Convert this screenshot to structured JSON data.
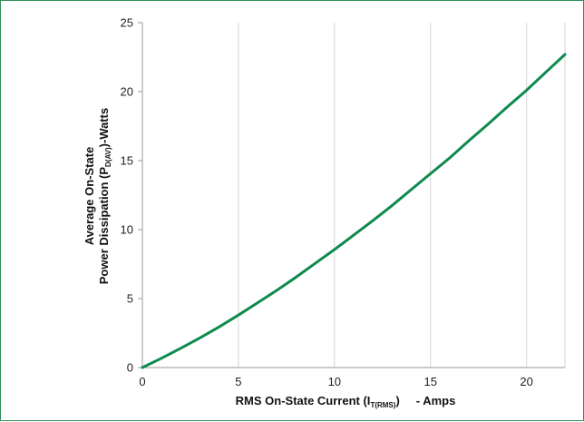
{
  "chart_data": {
    "type": "line",
    "title": "",
    "xlabel": {
      "main": "RMS On-State Current (I",
      "sub": "T(RMS)",
      "suffix": ")",
      "tail": "- Amps"
    },
    "ylabel": {
      "line1": "Average On-State",
      "line2_main": "Power Dissipation (P",
      "line2_sub": "D(AV)",
      "line2_suffix": ")-Watts"
    },
    "xlim": [
      0,
      22
    ],
    "ylim": [
      0,
      25
    ],
    "x_ticks": [
      0,
      5,
      10,
      15,
      20
    ],
    "y_ticks": [
      0,
      5,
      10,
      15,
      20,
      25
    ],
    "grid": "vertical",
    "line_color": "#0e8a4e",
    "series": [
      {
        "x": [
          0,
          1,
          2,
          3,
          4,
          5,
          6,
          7,
          8,
          9,
          10,
          11,
          12,
          13,
          14,
          15,
          16,
          17,
          18,
          19,
          20,
          21,
          22
        ],
        "y": [
          0,
          0.68,
          1.4,
          2.15,
          2.95,
          3.8,
          4.7,
          5.6,
          6.55,
          7.55,
          8.55,
          9.6,
          10.65,
          11.75,
          12.9,
          14.05,
          15.2,
          16.45,
          17.65,
          18.9,
          20.1,
          21.4,
          22.7
        ]
      }
    ]
  }
}
